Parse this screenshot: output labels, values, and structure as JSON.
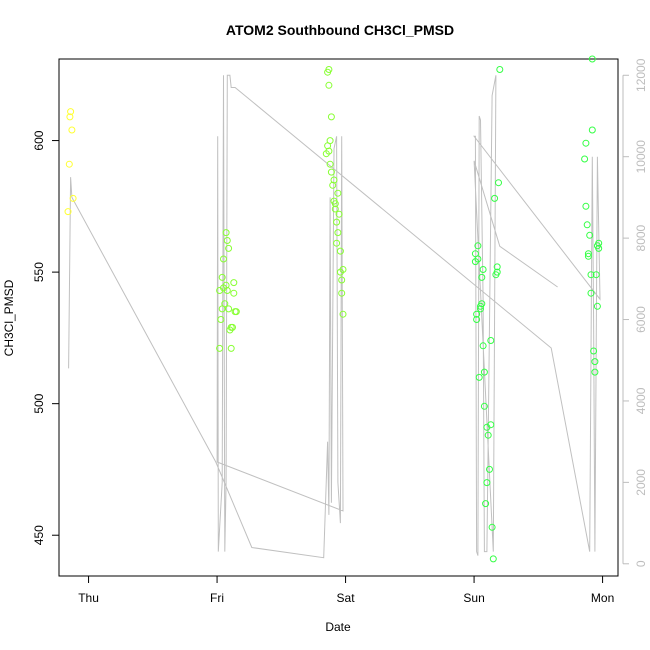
{
  "chart_data": {
    "type": "scatter",
    "title": "ATOM2 Southbound CH3Cl_PMSD",
    "xlabel": "Date",
    "ylabel": "CH3Cl_PMSD",
    "x_axis": {
      "type": "date",
      "range_days": [
        -0.23,
        4.12
      ],
      "ticks": [
        {
          "day": 0,
          "label": "Thu"
        },
        {
          "day": 1,
          "label": "Fri"
        },
        {
          "day": 2,
          "label": "Sat"
        },
        {
          "day": 3,
          "label": "Sun"
        },
        {
          "day": 4,
          "label": "Mon"
        }
      ]
    },
    "y_axis": {
      "range": [
        434.5,
        631
      ],
      "ticks": [
        450,
        500,
        550,
        600
      ]
    },
    "y2_axis": {
      "range": [
        -300,
        12400
      ],
      "ticks": [
        0,
        2000,
        4000,
        6000,
        8000,
        10000,
        12000
      ],
      "color": "#bdbdbd"
    },
    "grid": false,
    "colors": {
      "early": "#ffff33",
      "mid": "#88ff33",
      "late": "#33ff44",
      "line": "#c0c0c0"
    },
    "series": [
      {
        "type": "points",
        "points": [
          {
            "x": -0.16,
            "y": 573,
            "c": "early"
          },
          {
            "x": -0.15,
            "y": 591,
            "c": "early"
          },
          {
            "x": -0.145,
            "y": 609,
            "c": "early"
          },
          {
            "x": -0.14,
            "y": 611,
            "c": "early"
          },
          {
            "x": -0.13,
            "y": 604,
            "c": "early"
          },
          {
            "x": -0.12,
            "y": 578,
            "c": "early"
          },
          {
            "x": 1.02,
            "y": 543,
            "c": "mid"
          },
          {
            "x": 1.02,
            "y": 521,
            "c": "mid"
          },
          {
            "x": 1.03,
            "y": 532,
            "c": "mid"
          },
          {
            "x": 1.04,
            "y": 536,
            "c": "mid"
          },
          {
            "x": 1.04,
            "y": 548,
            "c": "mid"
          },
          {
            "x": 1.05,
            "y": 555,
            "c": "mid"
          },
          {
            "x": 1.05,
            "y": 544,
            "c": "mid"
          },
          {
            "x": 1.06,
            "y": 538,
            "c": "mid"
          },
          {
            "x": 1.07,
            "y": 545,
            "c": "mid"
          },
          {
            "x": 1.07,
            "y": 565,
            "c": "mid"
          },
          {
            "x": 1.08,
            "y": 562,
            "c": "mid"
          },
          {
            "x": 1.08,
            "y": 543,
            "c": "mid"
          },
          {
            "x": 1.09,
            "y": 559,
            "c": "mid"
          },
          {
            "x": 1.09,
            "y": 536,
            "c": "mid"
          },
          {
            "x": 1.1,
            "y": 528,
            "c": "mid"
          },
          {
            "x": 1.11,
            "y": 529,
            "c": "mid"
          },
          {
            "x": 1.11,
            "y": 521,
            "c": "mid"
          },
          {
            "x": 1.12,
            "y": 529,
            "c": "mid"
          },
          {
            "x": 1.13,
            "y": 542,
            "c": "mid"
          },
          {
            "x": 1.13,
            "y": 546,
            "c": "mid"
          },
          {
            "x": 1.14,
            "y": 535,
            "c": "mid"
          },
          {
            "x": 1.15,
            "y": 535,
            "c": "mid"
          },
          {
            "x": 1.86,
            "y": 626,
            "c": "mid"
          },
          {
            "x": 1.87,
            "y": 627,
            "c": "mid"
          },
          {
            "x": 1.87,
            "y": 621,
            "c": "mid"
          },
          {
            "x": 1.86,
            "y": 598,
            "c": "mid"
          },
          {
            "x": 1.87,
            "y": 596,
            "c": "mid"
          },
          {
            "x": 1.88,
            "y": 591,
            "c": "mid"
          },
          {
            "x": 1.88,
            "y": 600,
            "c": "mid"
          },
          {
            "x": 1.89,
            "y": 609,
            "c": "mid"
          },
          {
            "x": 1.89,
            "y": 588,
            "c": "mid"
          },
          {
            "x": 1.9,
            "y": 583,
            "c": "mid"
          },
          {
            "x": 1.91,
            "y": 585,
            "c": "mid"
          },
          {
            "x": 1.91,
            "y": 577,
            "c": "mid"
          },
          {
            "x": 1.92,
            "y": 576,
            "c": "mid"
          },
          {
            "x": 1.92,
            "y": 574,
            "c": "mid"
          },
          {
            "x": 1.93,
            "y": 569,
            "c": "mid"
          },
          {
            "x": 1.93,
            "y": 561,
            "c": "mid"
          },
          {
            "x": 1.94,
            "y": 580,
            "c": "mid"
          },
          {
            "x": 1.94,
            "y": 565,
            "c": "mid"
          },
          {
            "x": 1.95,
            "y": 572,
            "c": "mid"
          },
          {
            "x": 1.96,
            "y": 558,
            "c": "mid"
          },
          {
            "x": 1.96,
            "y": 550,
            "c": "mid"
          },
          {
            "x": 1.97,
            "y": 542,
            "c": "mid"
          },
          {
            "x": 1.97,
            "y": 547,
            "c": "mid"
          },
          {
            "x": 1.98,
            "y": 534,
            "c": "mid"
          },
          {
            "x": 1.98,
            "y": 551,
            "c": "mid"
          },
          {
            "x": 1.85,
            "y": 595,
            "c": "mid"
          },
          {
            "x": 3.01,
            "y": 554,
            "c": "late"
          },
          {
            "x": 3.01,
            "y": 557,
            "c": "late"
          },
          {
            "x": 3.02,
            "y": 534,
            "c": "late"
          },
          {
            "x": 3.02,
            "y": 532,
            "c": "late"
          },
          {
            "x": 3.03,
            "y": 560,
            "c": "late"
          },
          {
            "x": 3.03,
            "y": 555,
            "c": "late"
          },
          {
            "x": 3.04,
            "y": 510,
            "c": "late"
          },
          {
            "x": 3.05,
            "y": 536,
            "c": "late"
          },
          {
            "x": 3.05,
            "y": 537,
            "c": "late"
          },
          {
            "x": 3.06,
            "y": 538,
            "c": "late"
          },
          {
            "x": 3.06,
            "y": 548,
            "c": "late"
          },
          {
            "x": 3.07,
            "y": 551,
            "c": "late"
          },
          {
            "x": 3.07,
            "y": 522,
            "c": "late"
          },
          {
            "x": 3.08,
            "y": 512,
            "c": "late"
          },
          {
            "x": 3.08,
            "y": 499,
            "c": "late"
          },
          {
            "x": 3.09,
            "y": 462,
            "c": "late"
          },
          {
            "x": 3.1,
            "y": 470,
            "c": "late"
          },
          {
            "x": 3.1,
            "y": 491,
            "c": "late"
          },
          {
            "x": 3.11,
            "y": 488,
            "c": "late"
          },
          {
            "x": 3.12,
            "y": 475,
            "c": "late"
          },
          {
            "x": 3.13,
            "y": 492,
            "c": "late"
          },
          {
            "x": 3.13,
            "y": 524,
            "c": "late"
          },
          {
            "x": 3.14,
            "y": 453,
            "c": "late"
          },
          {
            "x": 3.15,
            "y": 441,
            "c": "late"
          },
          {
            "x": 3.16,
            "y": 578,
            "c": "late"
          },
          {
            "x": 3.17,
            "y": 549,
            "c": "late"
          },
          {
            "x": 3.18,
            "y": 552,
            "c": "late"
          },
          {
            "x": 3.18,
            "y": 550,
            "c": "late"
          },
          {
            "x": 3.19,
            "y": 584,
            "c": "late"
          },
          {
            "x": 3.2,
            "y": 627,
            "c": "late"
          },
          {
            "x": 3.86,
            "y": 593,
            "c": "late"
          },
          {
            "x": 3.87,
            "y": 599,
            "c": "late"
          },
          {
            "x": 3.87,
            "y": 575,
            "c": "late"
          },
          {
            "x": 3.88,
            "y": 568,
            "c": "late"
          },
          {
            "x": 3.89,
            "y": 557,
            "c": "late"
          },
          {
            "x": 3.89,
            "y": 556,
            "c": "late"
          },
          {
            "x": 3.9,
            "y": 564,
            "c": "late"
          },
          {
            "x": 3.91,
            "y": 549,
            "c": "late"
          },
          {
            "x": 3.91,
            "y": 542,
            "c": "late"
          },
          {
            "x": 3.92,
            "y": 604,
            "c": "late"
          },
          {
            "x": 3.92,
            "y": 631,
            "c": "late"
          },
          {
            "x": 3.93,
            "y": 520,
            "c": "late"
          },
          {
            "x": 3.94,
            "y": 516,
            "c": "late"
          },
          {
            "x": 3.94,
            "y": 512,
            "c": "late"
          },
          {
            "x": 3.95,
            "y": 549,
            "c": "late"
          },
          {
            "x": 3.96,
            "y": 560,
            "c": "late"
          },
          {
            "x": 3.96,
            "y": 537,
            "c": "late"
          },
          {
            "x": 3.97,
            "y": 561,
            "c": "late"
          },
          {
            "x": 3.97,
            "y": 559,
            "c": "late"
          }
        ]
      },
      {
        "type": "line",
        "axis": "y2",
        "points": [
          [
            -0.155,
            4800
          ],
          [
            -0.14,
            9500
          ],
          [
            -0.13,
            9000
          ],
          [
            0.99,
            2500
          ],
          [
            1.27,
            400
          ],
          [
            1.83,
            150
          ],
          [
            1.86,
            3000
          ],
          [
            1.87,
            1200
          ],
          [
            1.88,
            9000
          ],
          [
            1.89,
            1500
          ],
          [
            1.91,
            10200
          ],
          [
            1.93,
            10500
          ],
          [
            1.94,
            2000
          ],
          [
            1.96,
            1000
          ],
          [
            1.97,
            10500
          ],
          [
            1.98,
            1300
          ],
          [
            1.0,
            2500
          ],
          [
            1.005,
            10500
          ],
          [
            1.01,
            300
          ],
          [
            1.04,
            2000
          ],
          [
            1.05,
            12000
          ],
          [
            1.06,
            300
          ],
          [
            1.07,
            2000
          ],
          [
            1.08,
            12000
          ],
          [
            1.1,
            12000
          ],
          [
            1.11,
            11700
          ],
          [
            1.14,
            11700
          ],
          [
            3.6,
            5300
          ],
          [
            3.9,
            300
          ],
          [
            3.92,
            10000
          ],
          [
            3.93,
            6000
          ],
          [
            3.94,
            300
          ],
          [
            3.96,
            10000
          ],
          [
            3.98,
            6500
          ],
          [
            3.0,
            10500
          ],
          [
            3.01,
            10500
          ],
          [
            3.02,
            300
          ],
          [
            3.03,
            200
          ],
          [
            3.04,
            11000
          ],
          [
            3.05,
            10900
          ],
          [
            3.07,
            6500
          ],
          [
            3.08,
            300
          ],
          [
            3.1,
            300
          ],
          [
            3.14,
            11500
          ],
          [
            3.17,
            12000
          ],
          [
            3.15,
            300
          ],
          [
            3.0,
            9900
          ],
          [
            3.2,
            7800
          ],
          [
            3.65,
            6800
          ]
        ]
      }
    ]
  }
}
